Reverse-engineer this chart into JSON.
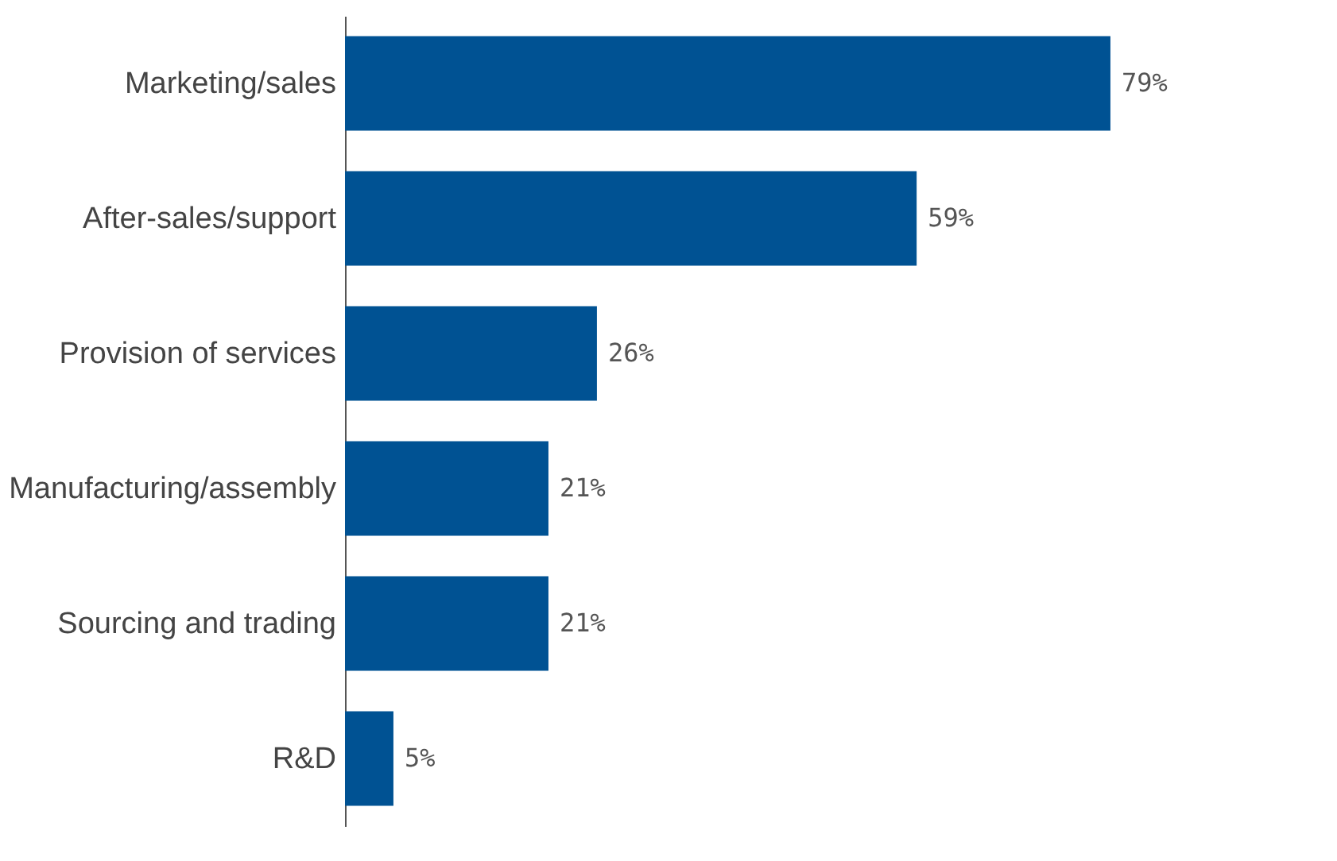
{
  "chart_data": {
    "type": "bar",
    "orientation": "horizontal",
    "categories": [
      "Marketing/sales",
      "After-sales/support",
      "Provision of services",
      "Manufacturing/assembly",
      "Sourcing and trading",
      "R&D"
    ],
    "values": [
      79,
      59,
      26,
      21,
      21,
      5
    ],
    "value_labels": [
      "79%",
      "59%",
      "26%",
      "21%",
      "21%",
      "5%"
    ],
    "color": "#005293",
    "grid": false,
    "tick_labels": "y"
  }
}
